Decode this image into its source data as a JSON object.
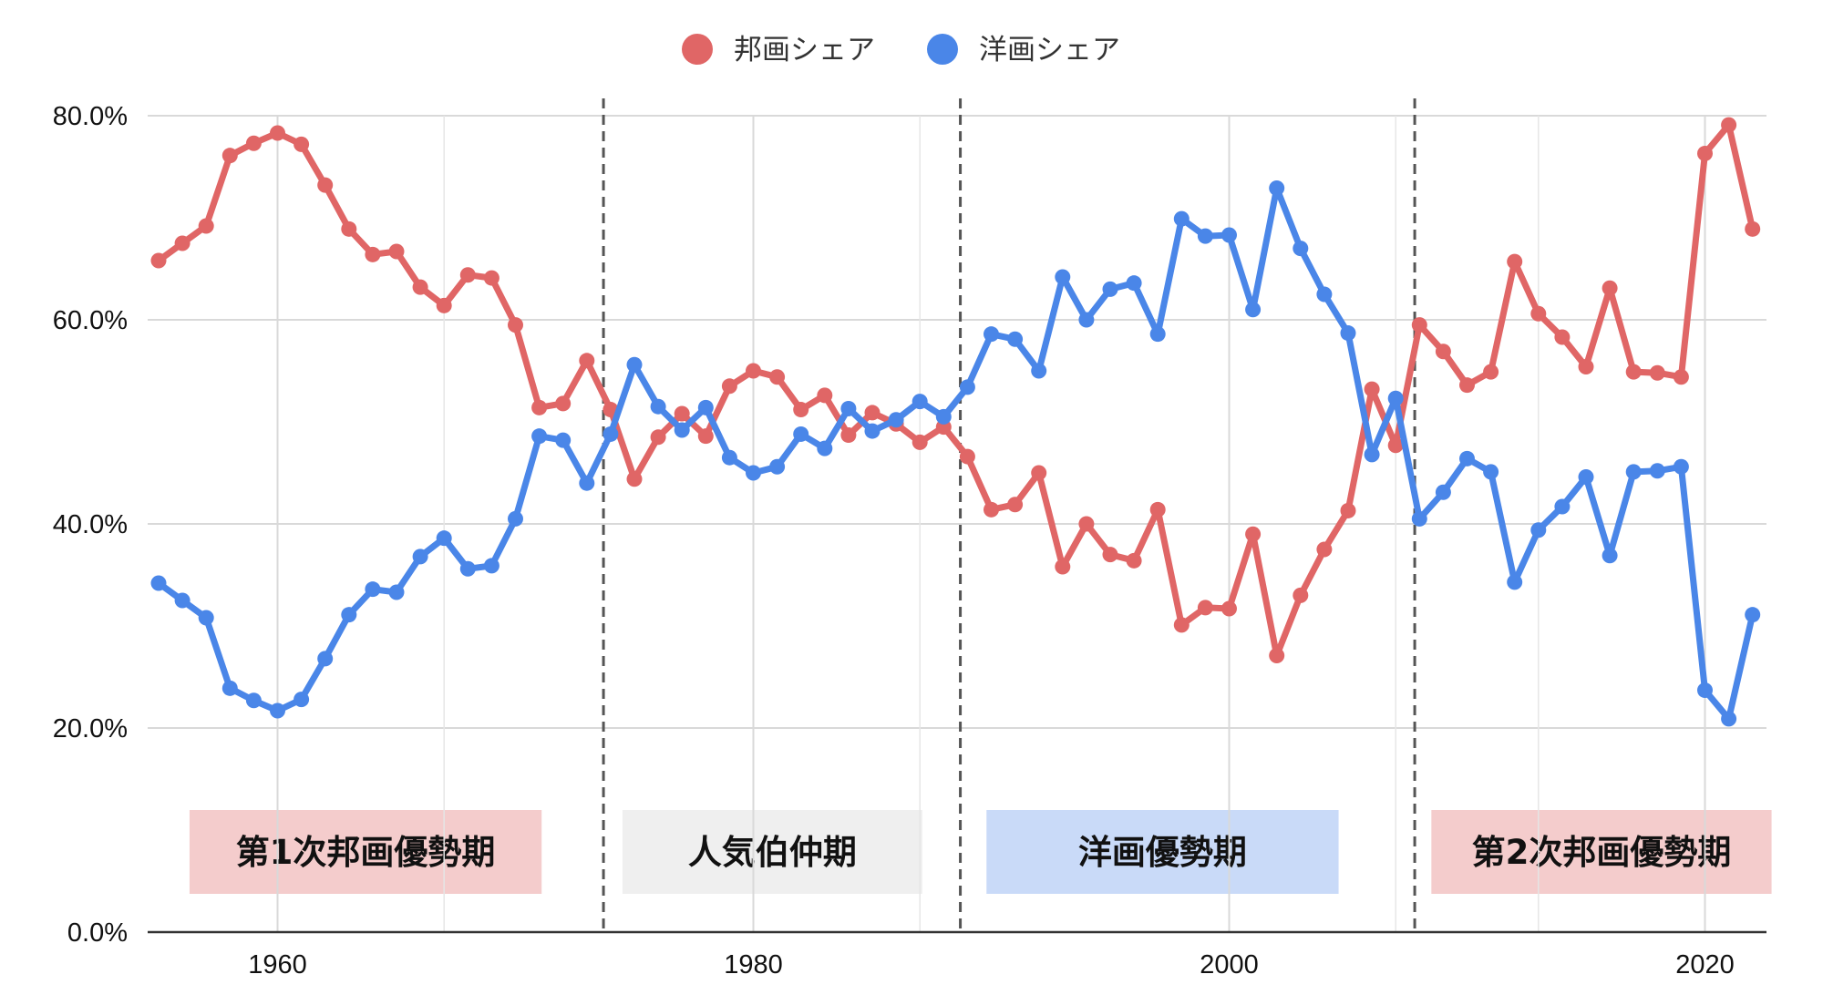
{
  "chart_data": {
    "type": "line",
    "title": "",
    "xlabel": "",
    "ylabel": "",
    "xlim": [
      1955,
      2023
    ],
    "ylim": [
      0,
      80
    ],
    "x_ticks": [
      1960,
      1980,
      2000,
      2020
    ],
    "x_tick_labels": [
      "1960",
      "1980",
      "2000",
      "2020"
    ],
    "y_ticks": [
      0,
      20,
      40,
      60,
      80
    ],
    "y_tick_labels": [
      "0.0%",
      "20.0%",
      "40.0%",
      "60.0%",
      "80.0%"
    ],
    "grid": true,
    "legend_position": "top",
    "x": [
      1955,
      1956,
      1957,
      1958,
      1959,
      1960,
      1961,
      1962,
      1963,
      1964,
      1965,
      1966,
      1967,
      1968,
      1969,
      1970,
      1971,
      1972,
      1973,
      1974,
      1975,
      1976,
      1977,
      1978,
      1979,
      1980,
      1981,
      1982,
      1983,
      1984,
      1985,
      1986,
      1987,
      1988,
      1989,
      1990,
      1991,
      1992,
      1993,
      1994,
      1995,
      1996,
      1997,
      1998,
      1999,
      2000,
      2001,
      2002,
      2003,
      2004,
      2005,
      2006,
      2007,
      2008,
      2009,
      2010,
      2011,
      2012,
      2013,
      2014,
      2015,
      2016,
      2017,
      2018,
      2019,
      2020,
      2021,
      2022
    ],
    "series": [
      {
        "name": "邦画シェア",
        "color": "#e06666",
        "values": [
          65.8,
          67.5,
          69.2,
          76.1,
          77.3,
          78.3,
          77.2,
          73.2,
          68.9,
          66.4,
          66.7,
          63.2,
          61.4,
          64.4,
          64.1,
          59.5,
          51.4,
          51.8,
          56.0,
          51.2,
          44.4,
          48.5,
          50.8,
          48.6,
          53.5,
          55.0,
          54.4,
          51.2,
          52.6,
          48.7,
          50.9,
          49.8,
          48.0,
          49.5,
          46.6,
          41.4,
          41.9,
          45.0,
          35.8,
          40.0,
          37.0,
          36.4,
          41.4,
          30.1,
          31.8,
          31.7,
          39.0,
          27.1,
          33.0,
          37.5,
          41.3,
          53.2,
          47.7,
          59.5,
          56.9,
          53.6,
          54.9,
          65.7,
          60.6,
          58.3,
          55.4,
          63.1,
          54.9,
          54.8,
          54.4,
          76.3,
          79.1,
          68.9
        ]
      },
      {
        "name": "洋画シェア",
        "color": "#4a86e8",
        "values": [
          34.2,
          32.5,
          30.8,
          23.9,
          22.7,
          21.7,
          22.8,
          26.8,
          31.1,
          33.6,
          33.3,
          36.8,
          38.6,
          35.6,
          35.9,
          40.5,
          48.6,
          48.2,
          44.0,
          48.8,
          55.6,
          51.5,
          49.2,
          51.4,
          46.5,
          45.0,
          45.6,
          48.8,
          47.4,
          51.3,
          49.1,
          50.2,
          52.0,
          50.5,
          53.4,
          58.6,
          58.1,
          55.0,
          64.2,
          60.0,
          63.0,
          63.6,
          58.6,
          69.9,
          68.2,
          68.3,
          61.0,
          72.9,
          67.0,
          62.5,
          58.7,
          46.8,
          52.3,
          40.5,
          43.1,
          46.4,
          45.1,
          34.3,
          39.4,
          41.7,
          44.6,
          36.9,
          45.1,
          45.2,
          45.6,
          23.7,
          20.9,
          31.1
        ]
      }
    ],
    "dividers": [
      1973.7,
      1988.7,
      2007.8
    ],
    "periods": [
      {
        "label": "第1次邦画優勢期",
        "color": "#f4cccc",
        "x_start": 1956.3,
        "x_end": 1971.1
      },
      {
        "label": "人気伯仲期",
        "color": "#efefef",
        "x_start": 1974.5,
        "x_end": 1987.1
      },
      {
        "label": "洋画優勢期",
        "color": "#c9daf8",
        "x_start": 1989.8,
        "x_end": 2004.6
      },
      {
        "label": "第2次邦画優勢期",
        "color": "#f4cccc",
        "x_start": 2008.5,
        "x_end": 2022.8
      }
    ]
  }
}
